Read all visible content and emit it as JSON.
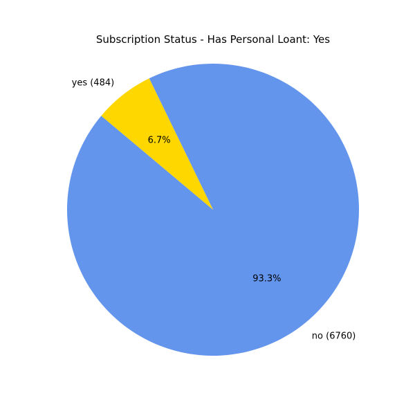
{
  "chart_data": {
    "type": "pie",
    "title": "Subscription Status - Has Personal Loant: Yes",
    "slices": [
      {
        "label": "no",
        "value": 6760,
        "percent_label": "93.3%",
        "outer_label": "no (6760)",
        "color": "#6495ED"
      },
      {
        "label": "yes",
        "value": 484,
        "percent_label": "6.7%",
        "outer_label": "yes (484)",
        "color": "#FFD700"
      }
    ],
    "start_angle_deg": 140,
    "direction": "counterclockwise",
    "legend": "none"
  }
}
